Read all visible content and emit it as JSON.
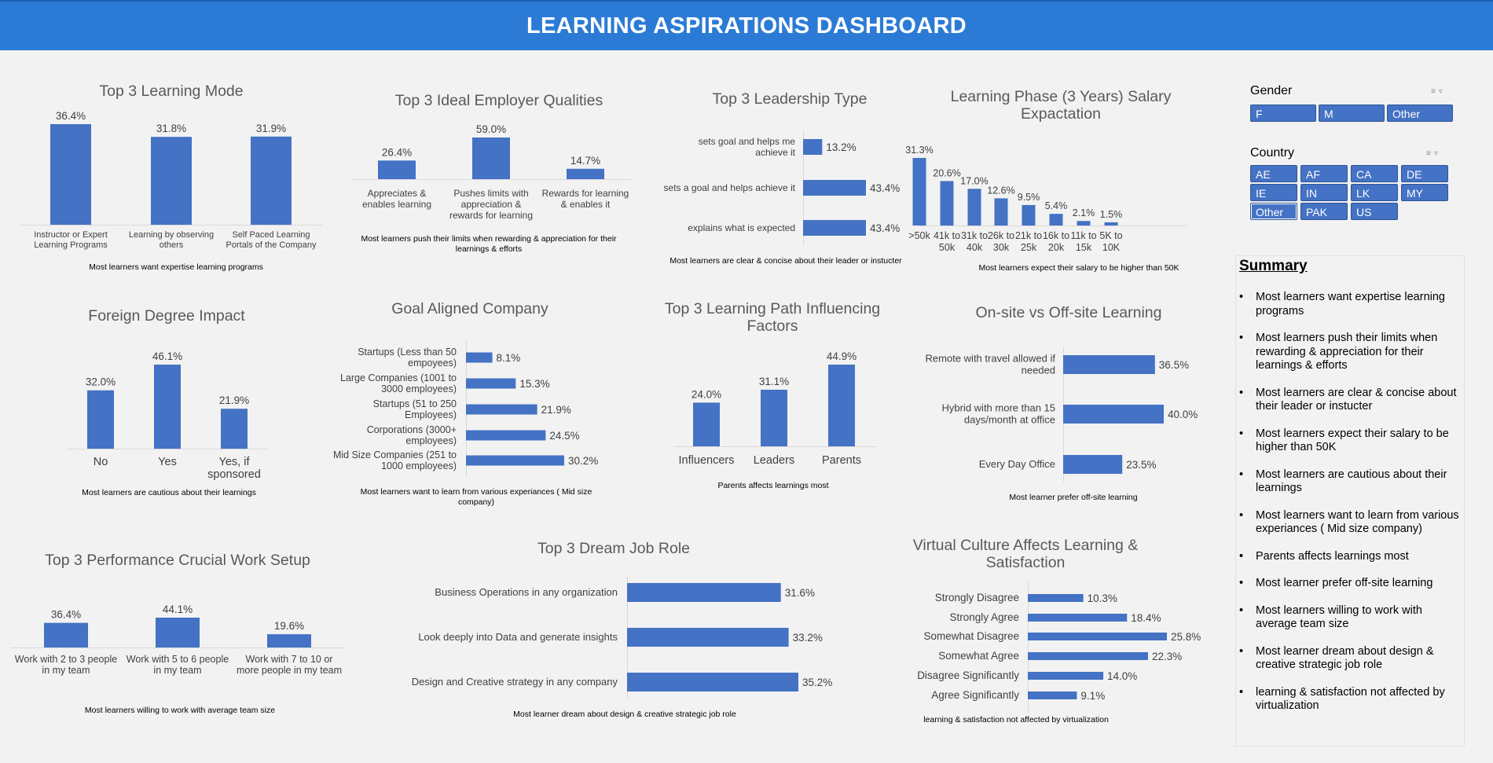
{
  "header": {
    "title": "LEARNING ASPIRATIONS DASHBOARD"
  },
  "slicers": {
    "gender": {
      "title": "Gender",
      "items": [
        "F",
        "M",
        "Other"
      ]
    },
    "country": {
      "title": "Country",
      "items": [
        "AE",
        "AF",
        "CA",
        "DE",
        "IE",
        "IN",
        "LK",
        "MY",
        "Other",
        "PAK",
        "US"
      ]
    }
  },
  "summary": {
    "title": "Summary",
    "items": [
      "Most learners want expertise learning programs",
      "Most learners push their limits when rewarding & appreciation for their learnings & efforts",
      "Most learners are clear & concise about their leader or instucter",
      "Most learners expect their salary to be higher than 50K",
      "Most learners are cautious about their learnings",
      "Most learners want to learn from various experiances ( Mid size company)",
      "Parents affects learnings most",
      "Most learner prefer off-site learning",
      "Most learners willing to work with average team size",
      "Most learner dream about design & creative strategic job role",
      "learning & satisfaction not affected by virtualization"
    ]
  },
  "chart_data": [
    {
      "id": "learning-mode",
      "type": "bar",
      "title": [
        "Top 3 Learning Mode"
      ],
      "categories": [
        [
          "Instructor or Expert",
          "Learning Programs"
        ],
        [
          "Learning by observing",
          "others"
        ],
        [
          "Self Paced Learning",
          "Portals of the Company"
        ]
      ],
      "values": [
        36.4,
        31.8,
        31.9
      ],
      "labels": [
        "36.4%",
        "31.8%",
        "31.9%"
      ],
      "caption": [
        "Most learners want expertise learning programs"
      ]
    },
    {
      "id": "employer-qualities",
      "type": "bar",
      "title": [
        "Top 3 Ideal Employer Qualities"
      ],
      "categories": [
        [
          "Appreciates &",
          "enables learning"
        ],
        [
          "Pushes limits with",
          "appreciation &",
          "rewards for learning"
        ],
        [
          "Rewards for learning",
          "& enables it"
        ]
      ],
      "values": [
        26.4,
        59.0,
        14.7
      ],
      "labels": [
        "26.4%",
        "59.0%",
        "14.7%"
      ],
      "caption": [
        "Most learners push their limits when rewarding & appreciation for their",
        "learnings & efforts"
      ]
    },
    {
      "id": "leadership-type",
      "type": "bar-horizontal",
      "title": [
        "Top 3 Leadership Type"
      ],
      "categories": [
        [
          "sets goal and helps me",
          "achieve it"
        ],
        [
          "sets a goal and helps achieve it"
        ],
        [
          "explains what is expected"
        ]
      ],
      "values": [
        13.2,
        43.4,
        43.4
      ],
      "labels": [
        "13.2%",
        "43.4%",
        "43.4%"
      ],
      "caption": [
        "Most learners are clear & concise about their leader or instucter"
      ]
    },
    {
      "id": "salary-expectation",
      "type": "bar",
      "title": [
        "Learning Phase (3 Years) Salary",
        "Expactation"
      ],
      "categories": [
        [
          ">50k"
        ],
        [
          "41k to",
          "50k"
        ],
        [
          "31k to",
          "40k"
        ],
        [
          "26k to",
          "30k"
        ],
        [
          "21k to",
          "25k"
        ],
        [
          "16k to",
          "20k"
        ],
        [
          "11k to",
          "15k"
        ],
        [
          "5K to",
          "10K"
        ]
      ],
      "values": [
        31.3,
        20.6,
        17.0,
        12.6,
        9.5,
        5.4,
        2.1,
        1.5
      ],
      "labels": [
        "31.3%",
        "20.6%",
        "17.0%",
        "12.6%",
        "9.5%",
        "5.4%",
        "2.1%",
        "1.5%"
      ],
      "caption": [
        "Most learners expect their salary to be higher than 50K"
      ]
    },
    {
      "id": "foreign-degree",
      "type": "bar",
      "title": [
        "Foreign Degree Impact"
      ],
      "categories": [
        [
          "No"
        ],
        [
          "Yes"
        ],
        [
          "Yes, if",
          "sponsored"
        ]
      ],
      "values": [
        32.0,
        46.1,
        21.9
      ],
      "labels": [
        "32.0%",
        "46.1%",
        "21.9%"
      ],
      "caption": [
        "Most learners are cautious about their learnings"
      ]
    },
    {
      "id": "goal-aligned-company",
      "type": "bar-horizontal",
      "title": [
        "Goal Aligned Company"
      ],
      "categories": [
        [
          "Startups (Less than 50",
          "empoyees)"
        ],
        [
          "Large Companies (1001 to",
          "3000 employees)"
        ],
        [
          "Startups (51 to 250",
          "Employees)"
        ],
        [
          "Corporations (3000+",
          "employees)"
        ],
        [
          "Mid Size Companies (251 to",
          "1000 employees)"
        ]
      ],
      "values": [
        8.1,
        15.3,
        21.9,
        24.5,
        30.2
      ],
      "labels": [
        "8.1%",
        "15.3%",
        "21.9%",
        "24.5%",
        "30.2%"
      ],
      "caption": [
        "Most learners want to learn from various experiances ( Mid size",
        "company)"
      ]
    },
    {
      "id": "learning-path-factors",
      "type": "bar",
      "title": [
        "Top 3 Learning Path Influencing",
        "Factors"
      ],
      "categories": [
        [
          "Influencers"
        ],
        [
          "Leaders"
        ],
        [
          "Parents"
        ]
      ],
      "values": [
        24.0,
        31.1,
        44.9
      ],
      "labels": [
        "24.0%",
        "31.1%",
        "44.9%"
      ],
      "caption": [
        "Parents affects learnings most"
      ]
    },
    {
      "id": "onsite-offsite",
      "type": "bar-horizontal",
      "title": [
        "On-site vs Off-site Learning"
      ],
      "categories": [
        [
          "Remote with travel allowed if",
          "needed"
        ],
        [
          "Hybrid with more than 15",
          "days/month at office"
        ],
        [
          "Every Day Office"
        ]
      ],
      "values": [
        36.5,
        40.0,
        23.5
      ],
      "labels": [
        "36.5%",
        "40.0%",
        "23.5%"
      ],
      "caption": [
        "Most learner prefer off-site learning"
      ]
    },
    {
      "id": "work-setup",
      "type": "bar",
      "title": [
        "Top 3 Performance Crucial Work Setup"
      ],
      "categories": [
        [
          "Work with 2 to 3 people",
          "in my team"
        ],
        [
          "Work with 5 to 6 people",
          "in my team"
        ],
        [
          "Work with 7 to 10 or",
          "more people in my team"
        ]
      ],
      "values": [
        36.4,
        44.1,
        19.6
      ],
      "labels": [
        "36.4%",
        "44.1%",
        "19.6%"
      ],
      "caption": [
        "Most learners willing to work with average team size"
      ]
    },
    {
      "id": "dream-job-role",
      "type": "bar-horizontal",
      "title": [
        "Top 3 Dream Job Role"
      ],
      "categories": [
        [
          "Business Operations in any organization"
        ],
        [
          "Look deeply into Data and generate insights"
        ],
        [
          "Design and Creative strategy in any company"
        ]
      ],
      "values": [
        31.6,
        33.2,
        35.2
      ],
      "labels": [
        "31.6%",
        "33.2%",
        "35.2%"
      ],
      "caption": [
        "Most learner dream about design & creative strategic job role"
      ]
    },
    {
      "id": "virtual-culture",
      "type": "bar-horizontal",
      "title": [
        "Virtual Culture Affects Learning &",
        "Satisfaction"
      ],
      "categories": [
        [
          "Strongly Disagree"
        ],
        [
          "Strongly Agree"
        ],
        [
          "Somewhat Disagree"
        ],
        [
          "Somewhat Agree"
        ],
        [
          "Disagree Significantly"
        ],
        [
          "Agree Significantly"
        ]
      ],
      "values": [
        10.3,
        18.4,
        25.8,
        22.3,
        14.0,
        9.1
      ],
      "labels": [
        "10.3%",
        "18.4%",
        "25.8%",
        "22.3%",
        "14.0%",
        "9.1%"
      ],
      "caption": [
        "learning & satisfaction not affected by virtualization"
      ]
    }
  ],
  "colors": {
    "bar": "#4472c4",
    "banner": "#2b7bd6"
  }
}
